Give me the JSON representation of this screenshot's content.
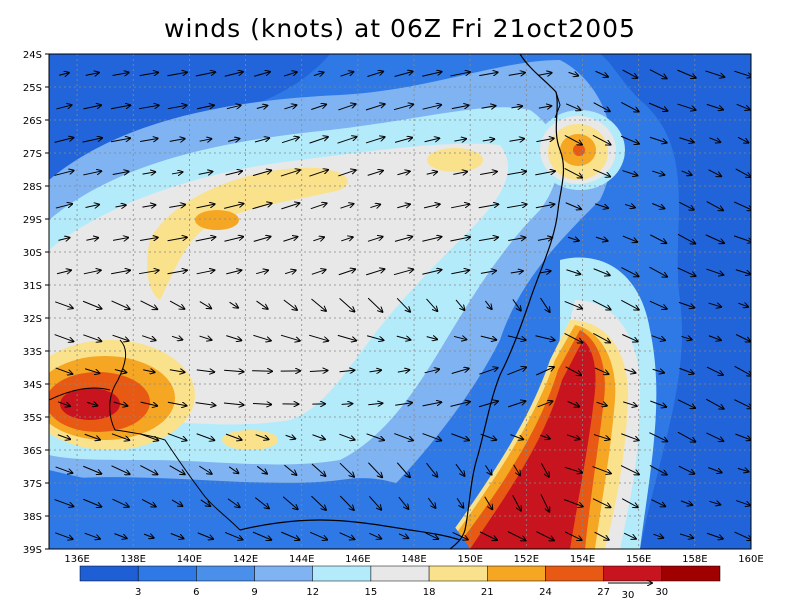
{
  "title": "winds (knots) at 06Z Fri 21oct2005",
  "latitude_labels": [
    "24S",
    "25S",
    "26S",
    "27S",
    "28S",
    "29S",
    "30S",
    "31S",
    "32S",
    "33S",
    "34S",
    "35S",
    "36S",
    "37S",
    "38S",
    "39S"
  ],
  "longitude_labels": [
    "136E",
    "138E",
    "140E",
    "142E",
    "144E",
    "146E",
    "148E",
    "150E",
    "152E",
    "154E",
    "156E",
    "158E",
    "160E"
  ],
  "colorbar": {
    "labels": [
      "3",
      "6",
      "9",
      "12",
      "15",
      "18",
      "21",
      "24",
      "27",
      "30"
    ],
    "colors": [
      "#1f5fd6",
      "#2f79e6",
      "#4a90ea",
      "#7fb3f2",
      "#b4ebfa",
      "#e8e8e8",
      "#fae28c",
      "#f5a623",
      "#e85a14",
      "#c8141e",
      "#a10000"
    ]
  },
  "vector_reference": {
    "label": "30"
  }
}
